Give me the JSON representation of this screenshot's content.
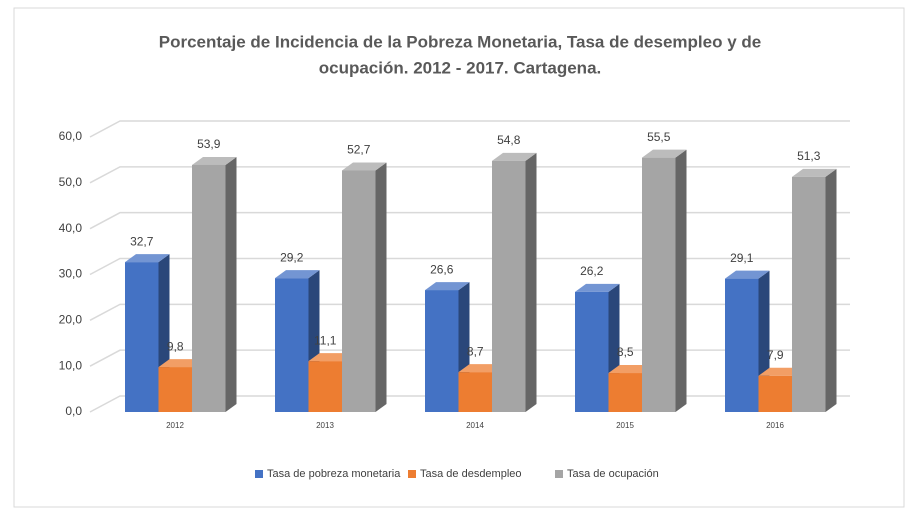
{
  "chart_data": {
    "type": "bar3d",
    "title": [
      "Porcentaje de Incidencia de la Pobreza Monetaria, Tasa de desempleo y de",
      "ocupación. 2012 - 2017.  Cartagena."
    ],
    "categories": [
      "2012",
      "2013",
      "2014",
      "2015",
      "2016"
    ],
    "series": [
      {
        "name": "Tasa de pobreza monetaria",
        "color": "#4472c4",
        "values": [
          32.7,
          29.2,
          26.6,
          26.2,
          29.1
        ],
        "value_labels": [
          "32,7",
          "29,2",
          "26,6",
          "26,2",
          "29,1"
        ]
      },
      {
        "name": "Tasa de desdempleo",
        "color": "#ed7d31",
        "values": [
          9.8,
          11.1,
          8.7,
          8.5,
          7.9
        ],
        "value_labels": [
          "9,8",
          "11,1",
          "8,7",
          "8,5",
          "7,9"
        ]
      },
      {
        "name": "Tasa de ocupación",
        "color": "#a5a5a5",
        "values": [
          53.9,
          52.7,
          54.8,
          55.5,
          51.3
        ],
        "value_labels": [
          "53,9",
          "52,7",
          "54,8",
          "55,5",
          "51,3"
        ]
      }
    ],
    "ylim": [
      0,
      60
    ],
    "yticks": [
      {
        "value": 0,
        "label": "0,0"
      },
      {
        "value": 10,
        "label": "10,0"
      },
      {
        "value": 20,
        "label": "20,0"
      },
      {
        "value": 30,
        "label": "30,0"
      },
      {
        "value": 40,
        "label": "40,0"
      },
      {
        "value": 50,
        "label": "50,0"
      },
      {
        "value": 60,
        "label": "60,0"
      }
    ],
    "grid": true,
    "legend": "bottom"
  }
}
